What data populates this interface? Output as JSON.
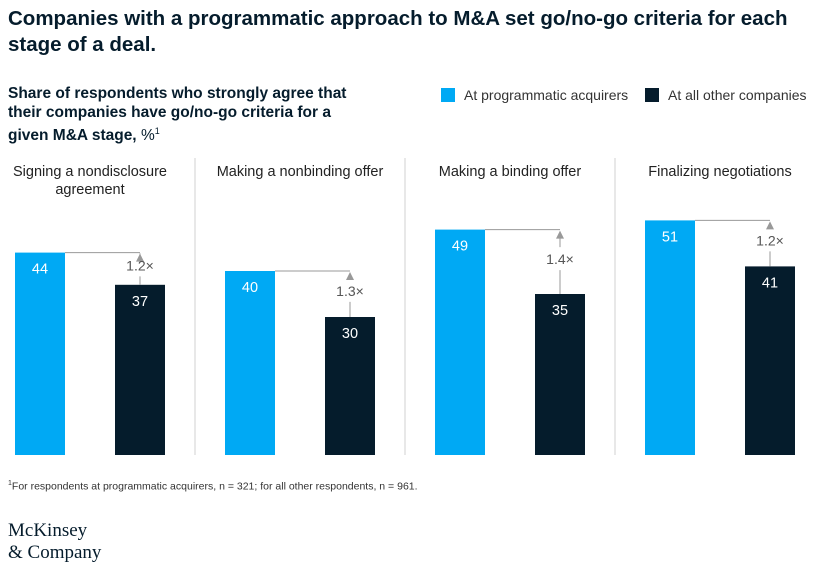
{
  "title": "Companies with a programmatic approach to M&A set go/no-go criteria for each stage of a deal.",
  "subtitle": {
    "text": "Share of respondents who strongly agree that their companies have go/no-go criteria for a given M&A stage,",
    "unit": "%",
    "note_marker": "1"
  },
  "legend": [
    {
      "label": "At programmatic acquirers",
      "color": "#00a9f4"
    },
    {
      "label": "At all other companies",
      "color": "#051c2c"
    }
  ],
  "chart_data": {
    "type": "bar",
    "categories": [
      "Signing a nondisclosure agreement",
      "Making a nonbinding offer",
      "Making a binding offer",
      "Finalizing negotiations"
    ],
    "category_lines": [
      [
        "Signing a nondisclosure",
        "agreement"
      ],
      [
        "Making a nonbinding offer"
      ],
      [
        "Making a binding offer"
      ],
      [
        "Finalizing negotiations"
      ]
    ],
    "series": [
      {
        "name": "At programmatic acquirers",
        "values": [
          44,
          40,
          49,
          51
        ],
        "color": "#00a9f4"
      },
      {
        "name": "At all other companies",
        "values": [
          37,
          30,
          35,
          41
        ],
        "color": "#051c2c"
      }
    ],
    "ratio_labels": [
      "1.2×",
      "1.3×",
      "1.4×",
      "1.2×"
    ],
    "ylim": [
      0,
      100
    ],
    "grid": false
  },
  "footnote": {
    "marker": "1",
    "text": "For respondents at programmatic acquirers, n = 321; for all other respondents, n = 961."
  },
  "logo": {
    "line1": "McKinsey",
    "line2": "& Company"
  }
}
